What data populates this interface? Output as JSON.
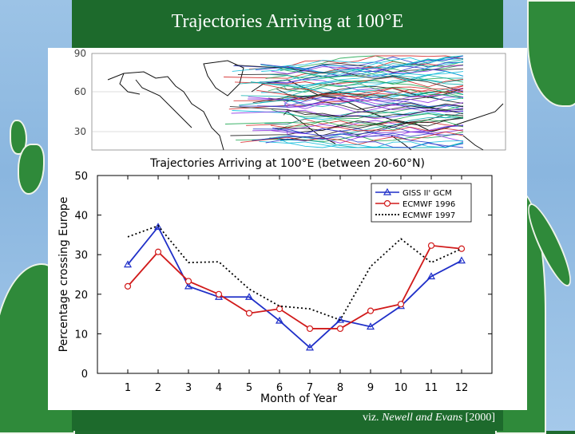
{
  "slide": {
    "title": "Trajectories Arriving at 100°E",
    "citation_prefix": "viz. ",
    "citation_authors": "Newell and Evans",
    "citation_year": " [2000]"
  },
  "map": {
    "lat_ticks": [
      "90",
      "60",
      "30"
    ]
  },
  "colors": {
    "giss": "#1f2fc8",
    "ecmwf1996": "#d11a1a",
    "ecmwf1997": "#000000",
    "background_green": "#1f6b2e",
    "ocean_blue": "#9cc3e6"
  },
  "chart_data": {
    "type": "line",
    "title": "Trajectories Arriving at 100°E (between 20-60°N)",
    "xlabel": "Month of Year",
    "ylabel": "Percentage crossing Europe",
    "x": [
      1,
      2,
      3,
      4,
      5,
      6,
      7,
      8,
      9,
      10,
      11,
      12
    ],
    "xlim": [
      0,
      13
    ],
    "ylim": [
      0,
      50
    ],
    "yticks": [
      0,
      10,
      20,
      30,
      40,
      50
    ],
    "legend_position": "top-right",
    "series": [
      {
        "name": "GISS II' GCM",
        "style": "solid",
        "marker": "triangle",
        "color": "#1f2fc8",
        "values": [
          27.5,
          37,
          22,
          19.3,
          19.3,
          13.3,
          6.5,
          13.5,
          11.8,
          17,
          24.5,
          28.5
        ]
      },
      {
        "name": "ECMWF 1996",
        "style": "solid",
        "marker": "circle",
        "color": "#d11a1a",
        "values": [
          22,
          30.7,
          23.3,
          20,
          15.2,
          16.3,
          11.3,
          11.3,
          15.8,
          17.5,
          32.3,
          31.5
        ]
      },
      {
        "name": "ECMWF 1997",
        "style": "dotted",
        "marker": "none",
        "color": "#000000",
        "values": [
          34.5,
          37.3,
          28,
          28.2,
          21.3,
          17,
          16.3,
          13.5,
          27,
          34,
          28,
          31.5
        ]
      }
    ]
  }
}
